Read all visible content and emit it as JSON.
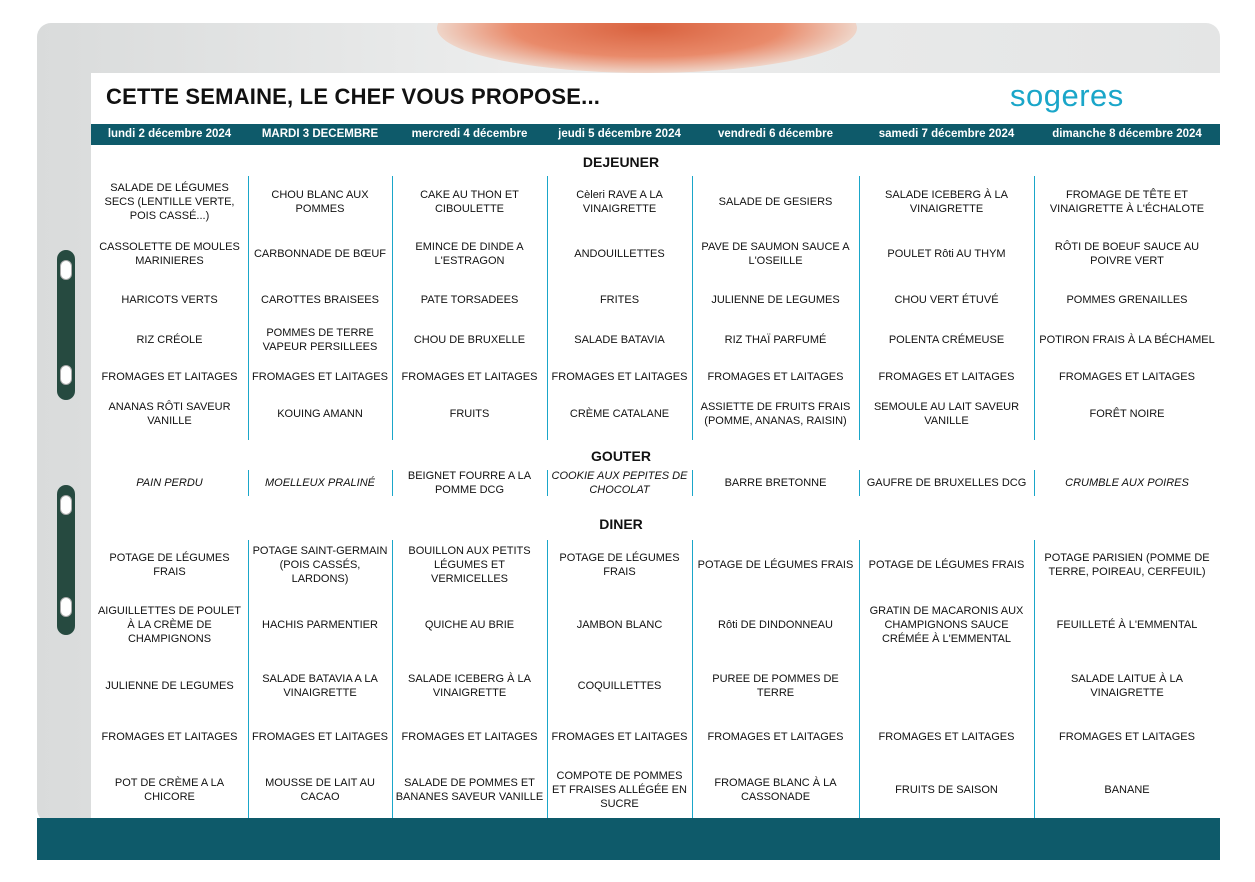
{
  "header": {
    "title": "CETTE SEMAINE, LE CHEF VOUS PROPOSE...",
    "logo": "sogeres"
  },
  "days": [
    "lundi 2 décembre 2024",
    "MARDI 3 DECEMBRE",
    "mercredi 4 décembre",
    "jeudi 5 décembre 2024",
    "vendredi 6 décembre",
    "samedi 7 décembre 2024",
    "dimanche 8 décembre 2024"
  ],
  "sections": [
    {
      "title": "DEJEUNER",
      "rows": [
        [
          "SALADE DE LÉGUMES SECS (LENTILLE VERTE, POIS CASSÉ...)",
          "CHOU BLANC AUX POMMES",
          "CAKE AU THON ET CIBOULETTE",
          "Cèleri RAVE A LA VINAIGRETTE",
          "SALADE DE GESIERS",
          "SALADE ICEBERG À LA VINAIGRETTE",
          "FROMAGE DE TÊTE ET VINAIGRETTE À L'ÉCHALOTE"
        ],
        [
          "CASSOLETTE DE MOULES MARINIERES",
          "CARBONNADE DE BŒUF",
          "EMINCE DE DINDE A L'ESTRAGON",
          "ANDOUILLETTES",
          "PAVE DE SAUMON SAUCE A L'OSEILLE",
          "POULET Rôti AU THYM",
          "RÔTI DE BOEUF SAUCE AU POIVRE VERT"
        ],
        [
          "HARICOTS VERTS",
          "CAROTTES BRAISEES",
          "PATE TORSADEES",
          "FRITES",
          "JULIENNE DE LEGUMES",
          "CHOU VERT ÉTUVÉ",
          "POMMES GRENAILLES"
        ],
        [
          "RIZ CRÉOLE",
          "POMMES DE TERRE VAPEUR PERSILLEES",
          "CHOU DE BRUXELLE",
          "SALADE BATAVIA",
          "RIZ THAÏ PARFUMÉ",
          "POLENTA CRÉMEUSE",
          "POTIRON FRAIS À LA BÉCHAMEL"
        ],
        [
          "FROMAGES ET LAITAGES",
          "FROMAGES ET LAITAGES",
          "FROMAGES ET LAITAGES",
          "FROMAGES ET LAITAGES",
          "FROMAGES ET LAITAGES",
          "FROMAGES ET LAITAGES",
          "FROMAGES ET LAITAGES"
        ],
        [
          "ANANAS RÔTI SAVEUR VANILLE",
          "KOUING AMANN",
          "FRUITS",
          "CRÈME CATALANE",
          "ASSIETTE DE FRUITS FRAIS (POMME, ANANAS, RAISIN)",
          "SEMOULE AU LAIT SAVEUR VANILLE",
          "FORÊT NOIRE"
        ]
      ]
    },
    {
      "title": "GOUTER",
      "rows": [
        [
          "PAIN PERDU",
          "MOELLEUX PRALINÉ",
          "BEIGNET FOURRE A LA POMME DCG",
          "COOKIE AUX PEPITES DE CHOCOLAT",
          "BARRE BRETONNE",
          "GAUFRE DE BRUXELLES DCG",
          "CRUMBLE AUX POIRES"
        ]
      ]
    },
    {
      "title": "DINER",
      "rows": [
        [
          "POTAGE DE LÉGUMES FRAIS",
          "POTAGE SAINT-GERMAIN (POIS CASSÉS, LARDONS)",
          "BOUILLON AUX PETITS LÉGUMES ET VERMICELLES",
          "POTAGE DE LÉGUMES FRAIS",
          "POTAGE DE LÉGUMES FRAIS",
          "POTAGE DE LÉGUMES FRAIS",
          "POTAGE PARISIEN (POMME DE TERRE, POIREAU, CERFEUIL)"
        ],
        [
          "AIGUILLETTES DE POULET À LA CRÈME DE CHAMPIGNONS",
          "HACHIS PARMENTIER",
          "QUICHE AU BRIE",
          "JAMBON BLANC",
          "Rôti DE DINDONNEAU",
          "GRATIN DE MACARONIS AUX CHAMPIGNONS SAUCE CRÉMÉE À L'EMMENTAL",
          "FEUILLETÉ À L'EMMENTAL"
        ],
        [
          "JULIENNE DE LEGUMES",
          "SALADE BATAVIA A LA VINAIGRETTE",
          "SALADE ICEBERG À LA VINAIGRETTE",
          "COQUILLETTES",
          "PUREE DE POMMES DE TERRE",
          null,
          "SALADE LAITUE À LA VINAIGRETTE"
        ],
        [
          "FROMAGES ET LAITAGES",
          "FROMAGES ET LAITAGES",
          "FROMAGES ET LAITAGES",
          "FROMAGES ET LAITAGES",
          "FROMAGES ET LAITAGES",
          "FROMAGES ET LAITAGES",
          "FROMAGES ET LAITAGES"
        ],
        [
          "POT DE CRÈME A LA CHICORE",
          "MOUSSE DE LAIT AU CACAO",
          "SALADE DE POMMES ET BANANES SAVEUR VANILLE",
          "COMPOTE DE POMMES ET FRAISES ALLÉGÉE EN SUCRE",
          "FROMAGE BLANC À LA CASSONADE",
          "FRUITS DE SAISON",
          "BANANE"
        ]
      ]
    }
  ]
}
